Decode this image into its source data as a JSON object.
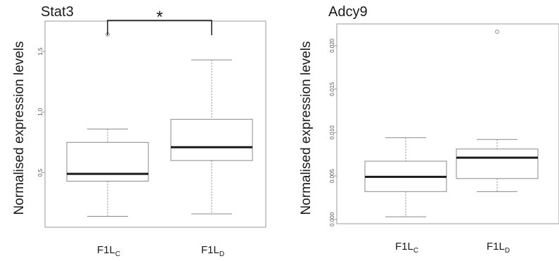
{
  "chart_data": [
    {
      "type": "box",
      "title": "Stat3",
      "ylabel": "Normalised expression levels",
      "ylim": [
        0.05,
        1.75
      ],
      "yticks": [
        "0.5",
        "1.0",
        "1.5"
      ],
      "yticks_values": [
        0.5,
        1.0,
        1.5
      ],
      "categories": [
        {
          "main": "F1L",
          "sub": "C"
        },
        {
          "main": "F1L",
          "sub": "D"
        }
      ],
      "boxes": [
        {
          "whisker_low": 0.14,
          "q1": 0.43,
          "median": 0.49,
          "q3": 0.75,
          "whisker_high": 0.86,
          "outliers": [
            1.64
          ]
        },
        {
          "whisker_low": 0.16,
          "q1": 0.6,
          "median": 0.71,
          "q3": 0.94,
          "whisker_high": 1.43,
          "outliers": []
        }
      ],
      "significance": {
        "between": [
          0,
          1
        ],
        "label": "*"
      }
    },
    {
      "type": "box",
      "title": "Adcy9",
      "ylabel": "Normalised expression levels",
      "ylim": [
        -0.0005,
        0.0225
      ],
      "yticks": [
        "0.000",
        "0.005",
        "0.010",
        "0.015",
        "0.020"
      ],
      "yticks_values": [
        0.0,
        0.005,
        0.01,
        0.015,
        0.02
      ],
      "categories": [
        {
          "main": "F1L",
          "sub": "C"
        },
        {
          "main": "F1L",
          "sub": "D"
        }
      ],
      "boxes": [
        {
          "whisker_low": 0.0003,
          "q1": 0.0032,
          "median": 0.0049,
          "q3": 0.0067,
          "whisker_high": 0.0094,
          "outliers": []
        },
        {
          "whisker_low": 0.0032,
          "q1": 0.0047,
          "median": 0.0071,
          "q3": 0.0081,
          "whisker_high": 0.0092,
          "outliers": [
            0.0216
          ]
        }
      ]
    }
  ]
}
